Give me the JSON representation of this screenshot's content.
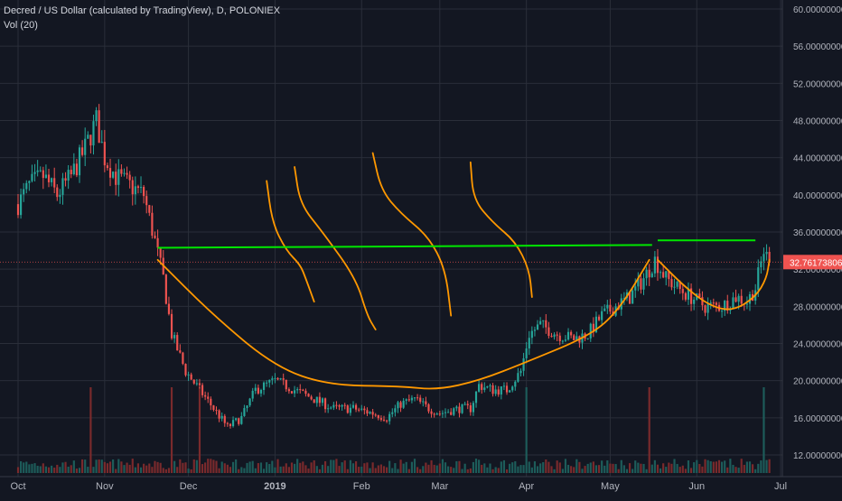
{
  "legend": {
    "title": "Decred / US Dollar (calculated by TradingView), D, POLONIEX",
    "volume": "Vol (20)"
  },
  "colors": {
    "background": "#131722",
    "grid": "#2a2e39",
    "up": "#26a69a",
    "down": "#ef5350",
    "vol_up": "#1d5c5a",
    "vol_down": "#7a2a2c",
    "annotation_orange": "#ff9800",
    "annotation_green": "#00e600",
    "price_tag": "#ef5350"
  },
  "chart_data": {
    "type": "candlestick",
    "title": "Decred / US Dollar (calculated by TradingView), D, POLONIEX",
    "x_ticks": [
      "Oct",
      "Nov",
      "Dec",
      "2019",
      "Feb",
      "Mar",
      "Apr",
      "May",
      "Jun",
      "Jul"
    ],
    "y_ticks": [
      "60.00000000",
      "56.00000000",
      "52.00000000",
      "48.00000000",
      "44.00000000",
      "40.00000000",
      "36.00000000",
      "32.00000000",
      "28.00000000",
      "24.00000000",
      "20.00000000",
      "16.00000000",
      "12.00000000"
    ],
    "ylim": [
      10,
      60
    ],
    "last_price": "32.76173806",
    "x_start": "2018-10-01",
    "x_end": "2019-07-01",
    "price_path": [
      [
        "2018-10-01",
        39
      ],
      [
        "2018-10-05",
        41
      ],
      [
        "2018-10-10",
        42
      ],
      [
        "2018-10-15",
        40
      ],
      [
        "2018-10-20",
        42
      ],
      [
        "2018-10-25",
        45
      ],
      [
        "2018-10-29",
        48
      ],
      [
        "2018-11-01",
        44
      ],
      [
        "2018-11-05",
        42
      ],
      [
        "2018-11-10",
        41
      ],
      [
        "2018-11-15",
        40
      ],
      [
        "2018-11-19",
        35
      ],
      [
        "2018-11-22",
        31
      ],
      [
        "2018-11-25",
        25
      ],
      [
        "2018-11-30",
        21
      ],
      [
        "2018-12-05",
        19
      ],
      [
        "2018-12-10",
        17
      ],
      [
        "2018-12-15",
        15
      ],
      [
        "2018-12-20",
        16
      ],
      [
        "2018-12-25",
        19
      ],
      [
        "2019-01-01",
        20
      ],
      [
        "2019-01-08",
        19
      ],
      [
        "2019-01-15",
        18
      ],
      [
        "2019-01-22",
        17
      ],
      [
        "2019-01-29",
        17
      ],
      [
        "2019-02-05",
        16.5
      ],
      [
        "2019-02-10",
        16
      ],
      [
        "2019-02-15",
        17.5
      ],
      [
        "2019-02-20",
        18
      ],
      [
        "2019-02-25",
        17
      ],
      [
        "2019-03-01",
        16.5
      ],
      [
        "2019-03-08",
        17
      ],
      [
        "2019-03-12",
        17
      ],
      [
        "2019-03-15",
        19.5
      ],
      [
        "2019-03-20",
        19
      ],
      [
        "2019-03-25",
        19
      ],
      [
        "2019-03-30",
        21
      ],
      [
        "2019-04-02",
        25
      ],
      [
        "2019-04-06",
        26
      ],
      [
        "2019-04-12",
        25
      ],
      [
        "2019-04-18",
        24.5
      ],
      [
        "2019-04-23",
        25
      ],
      [
        "2019-04-28",
        27
      ],
      [
        "2019-05-03",
        28
      ],
      [
        "2019-05-08",
        29
      ],
      [
        "2019-05-13",
        31
      ],
      [
        "2019-05-17",
        33
      ],
      [
        "2019-05-21",
        31
      ],
      [
        "2019-05-25",
        30
      ],
      [
        "2019-05-30",
        29
      ],
      [
        "2019-06-04",
        28
      ],
      [
        "2019-06-10",
        28
      ],
      [
        "2019-06-15",
        29
      ],
      [
        "2019-06-19",
        28.5
      ],
      [
        "2019-06-22",
        30
      ],
      [
        "2019-06-25",
        34
      ],
      [
        "2019-06-27",
        32.76
      ]
    ],
    "volume_ylim": [
      0,
      20
    ],
    "volume_spikes": [
      [
        "2018-10-27",
        14
      ],
      [
        "2018-11-25",
        9
      ],
      [
        "2018-12-05",
        8
      ],
      [
        "2019-04-01",
        12
      ],
      [
        "2019-05-15",
        9
      ],
      [
        "2019-06-25",
        8
      ]
    ]
  },
  "annotations": {
    "green_lines": [
      {
        "points": [
          [
            "2018-11-20",
            34.3
          ],
          [
            "2019-05-16",
            34.6
          ]
        ]
      },
      {
        "points": [
          [
            "2019-05-18",
            35.1
          ],
          [
            "2019-06-22",
            35.1
          ]
        ]
      }
    ],
    "orange_curves": [
      {
        "points": [
          [
            "2018-11-20",
            33
          ],
          [
            "2018-12-10",
            27
          ],
          [
            "2019-01-01",
            21.5
          ],
          [
            "2019-01-20",
            19.5
          ],
          [
            "2019-02-15",
            19.4
          ],
          [
            "2019-02-28",
            19
          ],
          [
            "2019-03-15",
            20
          ],
          [
            "2019-04-01",
            22
          ],
          [
            "2019-04-25",
            25
          ],
          [
            "2019-05-05",
            28
          ],
          [
            "2019-05-15",
            33
          ]
        ]
      },
      {
        "points": [
          [
            "2018-12-29",
            41.5
          ],
          [
            "2018-12-31",
            37
          ],
          [
            "2019-01-05",
            34
          ],
          [
            "2019-01-10",
            32.5
          ],
          [
            "2019-01-12",
            31
          ],
          [
            "2019-01-15",
            28.5
          ]
        ]
      },
      {
        "points": [
          [
            "2019-01-08",
            43
          ],
          [
            "2019-01-10",
            39
          ],
          [
            "2019-01-18",
            36
          ],
          [
            "2019-01-30",
            31
          ],
          [
            "2019-02-03",
            27
          ],
          [
            "2019-02-06",
            25.5
          ]
        ]
      },
      {
        "points": [
          [
            "2019-02-05",
            44.5
          ],
          [
            "2019-02-08",
            40.5
          ],
          [
            "2019-02-15",
            38
          ],
          [
            "2019-02-25",
            35.5
          ],
          [
            "2019-03-03",
            32
          ],
          [
            "2019-03-05",
            27
          ]
        ]
      },
      {
        "points": [
          [
            "2019-03-12",
            43.5
          ],
          [
            "2019-03-13",
            39.5
          ],
          [
            "2019-03-20",
            37
          ],
          [
            "2019-03-28",
            35
          ],
          [
            "2019-04-02",
            32
          ],
          [
            "2019-04-03",
            29
          ]
        ]
      },
      {
        "points": [
          [
            "2019-05-18",
            33
          ],
          [
            "2019-05-28",
            30
          ],
          [
            "2019-06-06",
            28
          ],
          [
            "2019-06-14",
            27.5
          ],
          [
            "2019-06-22",
            29
          ],
          [
            "2019-06-26",
            31
          ],
          [
            "2019-06-27",
            33
          ]
        ]
      }
    ]
  }
}
